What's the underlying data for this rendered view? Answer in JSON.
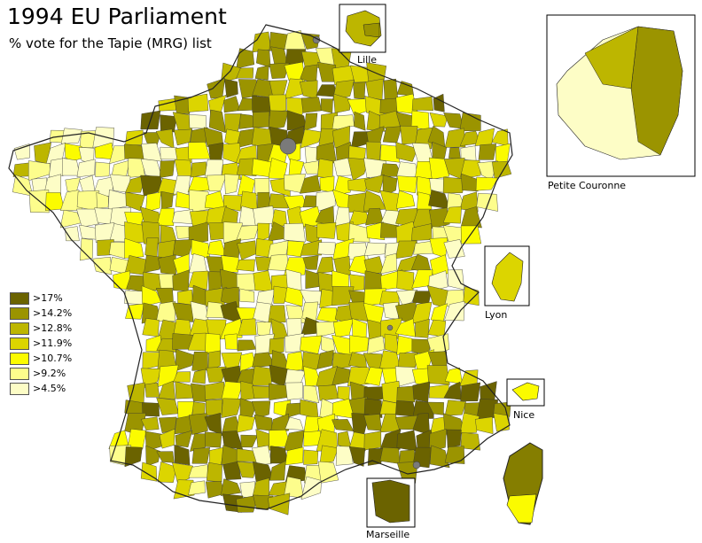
{
  "map": {
    "title": "1994 EU Parliament",
    "subtitle": "% vote for the Tapie (MRG) list",
    "legend": [
      {
        "label": ">17%",
        "color": "#6b6300"
      },
      {
        "label": ">14.2%",
        "color": "#9b9400"
      },
      {
        "label": ">12.8%",
        "color": "#bdb600"
      },
      {
        "label": ">11.9%",
        "color": "#dcd500"
      },
      {
        "label": ">10.7%",
        "color": "#fbfb00"
      },
      {
        "label": ">9.2%",
        "color": "#fdfd8c"
      },
      {
        "label": ">4.5%",
        "color": "#fdfdc6"
      }
    ],
    "insets": [
      {
        "label": "Lille"
      },
      {
        "label": "Petite Couronne"
      },
      {
        "label": "Lyon"
      },
      {
        "label": "Nice"
      },
      {
        "label": "Marseille"
      }
    ],
    "no_data_color": "#7a7a7a",
    "border_color": "#333333"
  }
}
